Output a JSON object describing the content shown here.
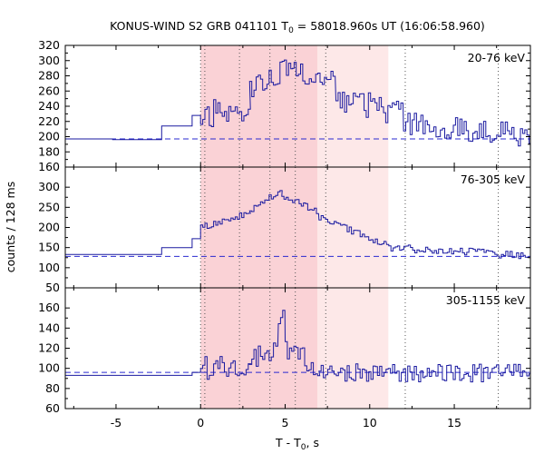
{
  "chart_data": {
    "type": "line",
    "title": {
      "prefix": "KONUS-WIND S2 GRB 041101 T",
      "sub": "0",
      "suffix": " = 58018.960s UT (16:06:58.960)"
    },
    "xlabel": {
      "prefix": "T - T",
      "sub": "0",
      "suffix": ", s"
    },
    "ylabel": "counts / 128 ms",
    "xlim": [
      -8,
      19.5
    ],
    "xticks": [
      -5,
      0,
      5,
      10,
      15
    ],
    "highlight_spans": [
      {
        "from": 2.9,
        "to": 11.1,
        "color": "#fde8e8"
      },
      {
        "from": 0.0,
        "to": 6.9,
        "color": "#fad2d6"
      }
    ],
    "vertical_lines": [
      0.0,
      0.25,
      2.3,
      4.1,
      5.6,
      7.4,
      12.1,
      17.6
    ],
    "colors": {
      "curve": "#1a1aa0",
      "background_line": "#2a2ad0",
      "vline": "#555555"
    },
    "panels": [
      {
        "name": "20-76 keV",
        "ylim": [
          160,
          320
        ],
        "yticks": [
          160,
          180,
          200,
          220,
          240,
          260,
          280,
          300,
          320
        ],
        "background": 197,
        "step_levels": [
          [
            -8,
            197
          ],
          [
            -5.2,
            196
          ],
          [
            -2.3,
            214
          ],
          [
            -0.5,
            228
          ]
        ],
        "segments": [
          {
            "start": 0.0,
            "end": 2.9,
            "base": 230,
            "peak": 235,
            "noise": 18,
            "seed": 11
          },
          {
            "start": 2.9,
            "end": 5.4,
            "base": 262,
            "peak": 295,
            "noise": 14,
            "seed": 12
          },
          {
            "start": 5.4,
            "end": 8.0,
            "base": 285,
            "peak": 270,
            "noise": 16,
            "seed": 13
          },
          {
            "start": 8.0,
            "end": 12.0,
            "base": 250,
            "peak": 230,
            "noise": 18,
            "seed": 14
          },
          {
            "start": 12.0,
            "end": 19.5,
            "base": 218,
            "peak": 200,
            "noise": 17,
            "seed": 15
          }
        ]
      },
      {
        "name": "76-305 keV",
        "ylim": [
          50,
          350
        ],
        "yticks": [
          50,
          100,
          150,
          200,
          250,
          300
        ],
        "background": 128,
        "step_levels": [
          [
            -8,
            133
          ],
          [
            -2.3,
            150
          ],
          [
            -0.5,
            172
          ]
        ],
        "segments": [
          {
            "start": 0.0,
            "end": 2.9,
            "base": 200,
            "peak": 235,
            "noise": 10,
            "seed": 21
          },
          {
            "start": 2.9,
            "end": 4.8,
            "base": 240,
            "peak": 295,
            "noise": 9,
            "seed": 22
          },
          {
            "start": 4.8,
            "end": 7.0,
            "base": 280,
            "peak": 240,
            "noise": 9,
            "seed": 23
          },
          {
            "start": 7.0,
            "end": 11.0,
            "base": 225,
            "peak": 155,
            "noise": 8,
            "seed": 24
          },
          {
            "start": 11.0,
            "end": 19.5,
            "base": 150,
            "peak": 130,
            "noise": 10,
            "seed": 25
          }
        ]
      },
      {
        "name": "305-1155 keV",
        "ylim": [
          60,
          180
        ],
        "yticks": [
          60,
          80,
          100,
          120,
          140,
          160
        ],
        "background": 96,
        "step_levels": [
          [
            -8,
            93
          ],
          [
            -2.3,
            93
          ],
          [
            -0.5,
            96
          ]
        ],
        "segments": [
          {
            "start": 0.0,
            "end": 2.9,
            "base": 100,
            "peak": 105,
            "noise": 12,
            "seed": 31
          },
          {
            "start": 2.9,
            "end": 4.6,
            "base": 110,
            "peak": 120,
            "noise": 13,
            "seed": 32
          },
          {
            "start": 4.6,
            "end": 5.0,
            "base": 150,
            "peak": 160,
            "noise": 6,
            "seed": 33
          },
          {
            "start": 5.0,
            "end": 7.0,
            "base": 120,
            "peak": 100,
            "noise": 11,
            "seed": 34
          },
          {
            "start": 7.0,
            "end": 19.5,
            "base": 96,
            "peak": 95,
            "noise": 9,
            "seed": 35
          }
        ]
      }
    ]
  }
}
